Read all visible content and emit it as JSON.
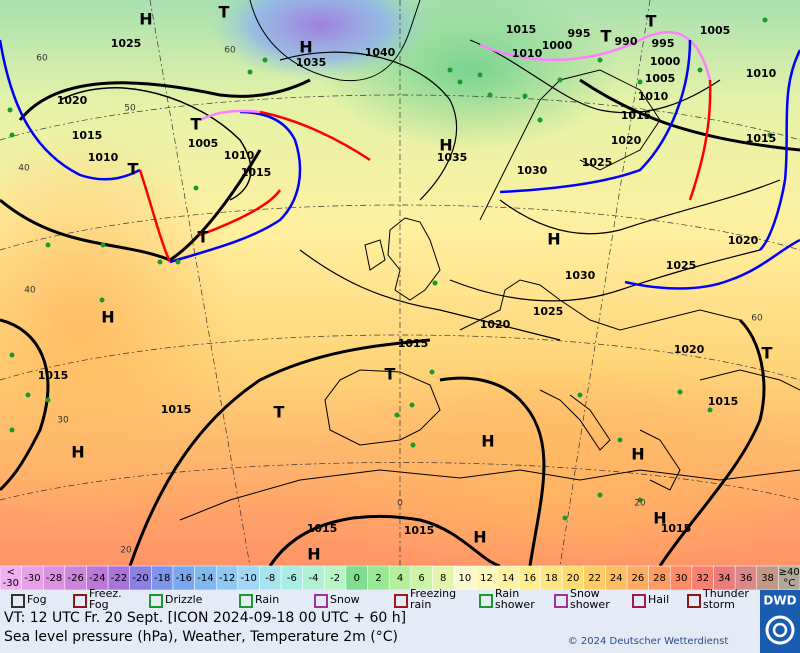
{
  "map": {
    "pressure_labels": [
      "1025",
      "1020",
      "1015",
      "1010",
      "1005",
      "1010",
      "1015",
      "1035",
      "1040",
      "1035",
      "1015",
      "1010",
      "1000",
      "995",
      "990",
      "995",
      "1000",
      "1005",
      "1010",
      "1015",
      "1020",
      "1025",
      "1030",
      "1005",
      "1010",
      "1015",
      "1030",
      "1025",
      "1020",
      "1020",
      "1025",
      "1015",
      "1015",
      "1015",
      "1020",
      "1015",
      "1015",
      "1015",
      "1015"
    ],
    "high_labels": [
      "H",
      "H",
      "H",
      "H",
      "H",
      "H",
      "H",
      "H",
      "H",
      "H",
      "H"
    ],
    "low_labels": [
      "T",
      "T",
      "T",
      "T",
      "T",
      "T",
      "T",
      "T",
      "T"
    ],
    "grid_labels": [
      "60",
      "60",
      "50",
      "40",
      "40",
      "30",
      "20",
      "0",
      "20",
      "60"
    ]
  },
  "legend": {
    "temperature_scale": [
      {
        "lines": [
          "<",
          "-30"
        ],
        "color": "#f0b0f0"
      },
      {
        "lines": [
          -30
        ],
        "color": "#e8a0e8"
      },
      {
        "lines": [
          -28
        ],
        "color": "#dc90e0"
      },
      {
        "lines": [
          -26
        ],
        "color": "#cc84dc"
      },
      {
        "lines": [
          -24
        ],
        "color": "#bc78d8"
      },
      {
        "lines": [
          -22
        ],
        "color": "#a874d8"
      },
      {
        "lines": [
          -20
        ],
        "color": "#8c80e4"
      },
      {
        "lines": [
          -18
        ],
        "color": "#7c94ec"
      },
      {
        "lines": [
          -16
        ],
        "color": "#78a8f0"
      },
      {
        "lines": [
          -14
        ],
        "color": "#80b8f0"
      },
      {
        "lines": [
          -12
        ],
        "color": "#90c8f4"
      },
      {
        "lines": [
          -10
        ],
        "color": "#a0d8f4"
      },
      {
        "lines": [
          -8
        ],
        "color": "#a8e4f0"
      },
      {
        "lines": [
          -6
        ],
        "color": "#a8ece4"
      },
      {
        "lines": [
          -4
        ],
        "color": "#b0f0d4"
      },
      {
        "lines": [
          -2
        ],
        "color": "#b8f4c4"
      },
      {
        "lines": [
          0
        ],
        "color": "#80dc90"
      },
      {
        "lines": [
          2
        ],
        "color": "#98e894"
      },
      {
        "lines": [
          4
        ],
        "color": "#b4f09c"
      },
      {
        "lines": [
          6
        ],
        "color": "#ccf4a4"
      },
      {
        "lines": [
          8
        ],
        "color": "#e4f4ac"
      },
      {
        "lines": [
          10
        ],
        "color": "#fafad0"
      },
      {
        "lines": [
          12
        ],
        "color": "#fff8bc"
      },
      {
        "lines": [
          14
        ],
        "color": "#fff2a4"
      },
      {
        "lines": [
          16
        ],
        "color": "#ffee8c"
      },
      {
        "lines": [
          18
        ],
        "color": "#ffe680"
      },
      {
        "lines": [
          20
        ],
        "color": "#ffdc70"
      },
      {
        "lines": [
          22
        ],
        "color": "#ffcc64"
      },
      {
        "lines": [
          24
        ],
        "color": "#ffbc60"
      },
      {
        "lines": [
          26
        ],
        "color": "#ffac60"
      },
      {
        "lines": [
          28
        ],
        "color": "#ff9c64"
      },
      {
        "lines": [
          30
        ],
        "color": "#ff8c68"
      },
      {
        "lines": [
          32
        ],
        "color": "#f88070"
      },
      {
        "lines": [
          34
        ],
        "color": "#ec7c7c"
      },
      {
        "lines": [
          36
        ],
        "color": "#dc8888"
      },
      {
        "lines": [
          38
        ],
        "color": "#c49888"
      },
      {
        "lines": [
          "≥40",
          "°C"
        ],
        "color": "#b0a898"
      }
    ],
    "weather": [
      {
        "lines": [
          "Fog"
        ]
      },
      {
        "lines": [
          "Freez.",
          "Fog"
        ]
      },
      {
        "lines": [
          "Drizzle"
        ]
      },
      {
        "lines": [
          "Rain"
        ]
      },
      {
        "lines": [
          "Snow"
        ]
      },
      {
        "lines": [
          "Freezing",
          "rain"
        ]
      },
      {
        "lines": [
          "Rain",
          "shower"
        ]
      },
      {
        "lines": [
          "Snow",
          "shower"
        ]
      },
      {
        "lines": [
          "Hail"
        ]
      },
      {
        "lines": [
          "Thunder",
          "storm"
        ]
      }
    ]
  },
  "footer": {
    "valid_time": "VT: 12 UTC Fr.  20 Sept. [ICON 2024-09-18  00 UTC + 60 h]",
    "description": "Sea level pressure (hPa), Weather, Temperature 2m (°C)",
    "copyright": "© 2024 Deutscher Wetterdienst",
    "logo": "DWD"
  }
}
